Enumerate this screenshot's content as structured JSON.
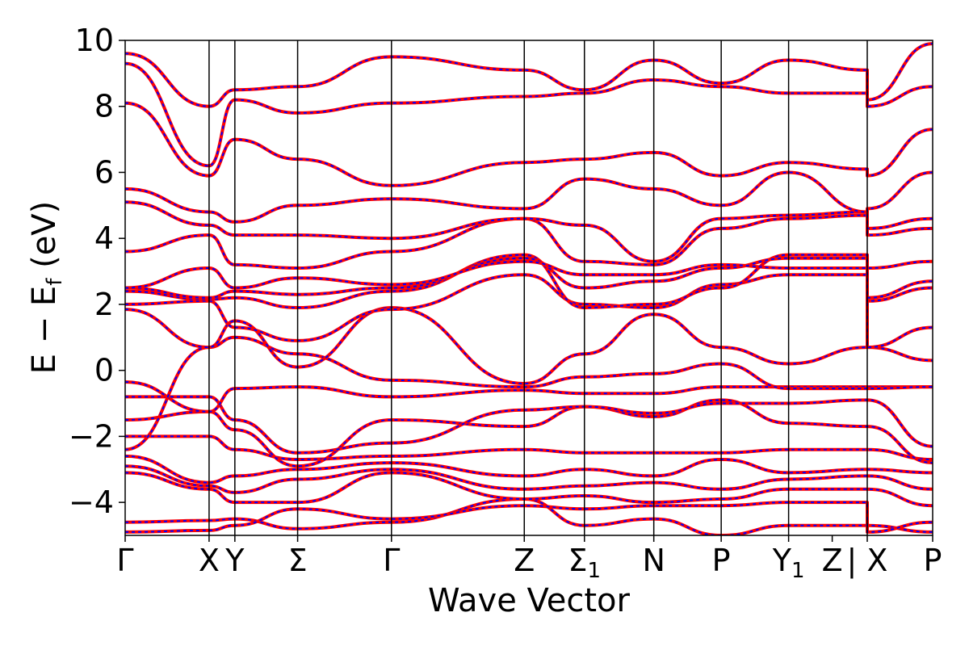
{
  "chart_data": {
    "type": "line",
    "title": "",
    "xlabel": "Wave Vector",
    "ylabel": "E − E",
    "ylabel_sub": "f",
    "ylabel_unit": " (eV)",
    "ylim": [
      -5,
      10
    ],
    "yticks": [
      10,
      8,
      6,
      4,
      2,
      0,
      -2,
      -4
    ],
    "ytick_labels": [
      "10",
      "8",
      "6",
      "4",
      "2",
      "0",
      "−2",
      "−4"
    ],
    "xlim": [
      0,
      12.22
    ],
    "path_ticks": [
      {
        "x": 0.0,
        "label": "Γ",
        "sub": ""
      },
      {
        "x": 1.27,
        "label": "X",
        "sub": ""
      },
      {
        "x": 1.66,
        "label": "Y",
        "sub": ""
      },
      {
        "x": 2.61,
        "label": "Σ",
        "sub": ""
      },
      {
        "x": 4.03,
        "label": "Γ",
        "sub": ""
      },
      {
        "x": 6.04,
        "label": "Z",
        "sub": ""
      },
      {
        "x": 6.95,
        "label": "Σ",
        "sub": "1"
      },
      {
        "x": 8.0,
        "label": "N",
        "sub": ""
      },
      {
        "x": 9.02,
        "label": "P",
        "sub": ""
      },
      {
        "x": 10.04,
        "label": "Y",
        "sub": "1"
      },
      {
        "x": 10.7,
        "label": "Z",
        "sub": ""
      },
      {
        "x": 11.23,
        "label": "| X",
        "sub": ""
      },
      {
        "x": 12.22,
        "label": "P",
        "sub": ""
      }
    ],
    "vlines": [
      1.27,
      1.66,
      2.61,
      4.03,
      6.04,
      6.95,
      8.0,
      9.02,
      10.04,
      11.23
    ],
    "series_colors": {
      "solid": "#ff0000",
      "dashed": "#0000ff"
    },
    "series": [
      {
        "x": [
          0,
          1.27,
          1.66,
          2.61,
          4.03,
          6.04,
          6.95,
          8.0,
          9.02,
          10.04,
          11.23,
          11.23,
          12.22
        ],
        "y": [
          -4.6,
          -4.55,
          -4.5,
          -4.8,
          -4.6,
          -3.9,
          -4.7,
          -4.5,
          -5.0,
          -4.7,
          -4.7,
          -4.7,
          -4.9
        ]
      },
      {
        "x": [
          0,
          1.27,
          1.66,
          2.61,
          4.03,
          6.04,
          6.95,
          8.0,
          9.02,
          10.04,
          11.23,
          11.23,
          12.22
        ],
        "y": [
          -4.9,
          -4.85,
          -4.7,
          -4.2,
          -4.5,
          -4.1,
          -4.2,
          -4.1,
          -4.1,
          -4.0,
          -4.0,
          -4.9,
          -4.6
        ]
      },
      {
        "x": [
          0,
          1.27,
          1.66,
          2.61,
          4.03,
          6.04,
          6.95,
          8.0,
          9.02,
          10.04,
          11.23,
          11.23,
          12.22
        ],
        "y": [
          -3.1,
          -3.6,
          -4.0,
          -4.0,
          -3.1,
          -3.9,
          -3.8,
          -4.0,
          -3.9,
          -3.6,
          -3.6,
          -3.6,
          -4.1
        ]
      },
      {
        "x": [
          0,
          1.27,
          1.66,
          2.61,
          4.03,
          6.04,
          6.95,
          8.0,
          9.02,
          10.04,
          11.23,
          11.23,
          12.22
        ],
        "y": [
          -2.9,
          -3.5,
          -3.7,
          -3.3,
          -3.0,
          -3.6,
          -3.5,
          -3.4,
          -3.6,
          -3.3,
          -3.2,
          -3.2,
          -3.6
        ]
      },
      {
        "x": [
          0,
          1.27,
          1.66,
          2.61,
          4.03,
          6.04,
          6.95,
          8.0,
          9.02,
          10.04,
          11.23,
          11.23,
          12.22
        ],
        "y": [
          -2.6,
          -3.4,
          -3.2,
          -3.0,
          -2.8,
          -3.2,
          -3.0,
          -3.2,
          -2.7,
          -3.1,
          -3.0,
          -3.0,
          -3.1
        ]
      },
      {
        "x": [
          0,
          1.27,
          1.66,
          2.61,
          4.03,
          6.04,
          6.95,
          8.0,
          9.02,
          10.04,
          11.23,
          11.23,
          12.22
        ],
        "y": [
          -2.0,
          -2.0,
          -2.4,
          -2.7,
          -2.6,
          -2.4,
          -2.5,
          -2.5,
          -2.5,
          -2.4,
          -2.4,
          -2.4,
          -2.7
        ]
      },
      {
        "x": [
          0,
          1.27,
          1.66,
          2.61,
          4.03,
          6.04,
          6.95,
          8.0,
          9.02,
          10.04,
          11.23,
          11.23,
          12.22
        ],
        "y": [
          -1.5,
          -1.25,
          -1.8,
          -2.9,
          -1.5,
          -1.7,
          -1.1,
          -1.4,
          -0.9,
          -1.6,
          -1.7,
          -1.7,
          -2.8
        ]
      },
      {
        "x": [
          0,
          1.27,
          1.66,
          2.61,
          4.03,
          6.04,
          6.95,
          8.0,
          9.02,
          10.04,
          11.23,
          11.23,
          12.22
        ],
        "y": [
          -0.8,
          -0.8,
          -1.5,
          -2.5,
          -2.2,
          -1.2,
          -1.1,
          -1.3,
          -1.0,
          -1.0,
          -0.9,
          -0.9,
          -2.3
        ]
      },
      {
        "x": [
          0,
          1.27,
          1.66,
          2.61,
          4.03,
          6.04,
          6.95,
          8.0,
          9.02,
          10.04,
          11.23,
          11.23,
          12.22
        ],
        "y": [
          -0.35,
          -1.25,
          -0.55,
          -0.5,
          -0.8,
          -0.6,
          -0.7,
          -0.7,
          -0.5,
          -0.5,
          -0.5,
          -0.5,
          -0.5
        ]
      },
      {
        "x": [
          0,
          1.27,
          1.66,
          2.61,
          4.03,
          6.04,
          6.95,
          8.0,
          9.02,
          10.04,
          11.23,
          11.23,
          12.22
        ],
        "y": [
          -2.4,
          0.7,
          1.0,
          0.5,
          -0.3,
          -0.5,
          -0.2,
          -0.1,
          0.2,
          -0.55,
          -0.55,
          -0.55,
          -0.5
        ]
      },
      {
        "x": [
          0,
          1.27,
          1.66,
          2.61,
          4.03,
          6.04,
          6.95,
          8.0,
          9.02,
          10.04,
          11.23,
          11.23,
          12.22
        ],
        "y": [
          1.85,
          0.7,
          1.5,
          0.1,
          1.9,
          -0.4,
          0.5,
          1.7,
          0.7,
          0.2,
          0.7,
          0.7,
          0.3
        ]
      },
      {
        "x": [
          0,
          1.27,
          1.66,
          2.61,
          4.03,
          6.04,
          6.95,
          8.0,
          9.02,
          10.04,
          11.23,
          11.23,
          12.22
        ],
        "y": [
          2.0,
          2.1,
          1.3,
          0.9,
          1.85,
          2.9,
          2.0,
          1.9,
          2.6,
          2.9,
          2.9,
          0.7,
          1.3
        ]
      },
      {
        "x": [
          0,
          1.27,
          1.66,
          2.61,
          4.03,
          6.04,
          6.95,
          8.0,
          9.02,
          10.04,
          11.23,
          11.23,
          12.22
        ],
        "y": [
          2.4,
          2.15,
          2.2,
          1.9,
          2.4,
          3.5,
          1.9,
          2.0,
          2.5,
          3.5,
          3.5,
          2.1,
          2.5
        ]
      },
      {
        "x": [
          0,
          1.27,
          1.66,
          2.61,
          4.03,
          6.04,
          6.95,
          8.0,
          9.02,
          10.04,
          11.23,
          11.23,
          12.22
        ],
        "y": [
          2.5,
          2.2,
          2.4,
          2.3,
          2.5,
          3.4,
          2.5,
          2.7,
          3.1,
          3.4,
          3.4,
          2.2,
          2.7
        ]
      },
      {
        "x": [
          0,
          1.27,
          1.66,
          2.61,
          4.03,
          6.04,
          6.95,
          8.0,
          9.02,
          10.04,
          11.23,
          11.23,
          12.22
        ],
        "y": [
          2.5,
          3.1,
          2.5,
          2.8,
          2.6,
          3.3,
          2.9,
          2.9,
          3.2,
          3.1,
          3.1,
          3.1,
          3.3
        ]
      },
      {
        "x": [
          0,
          1.27,
          1.66,
          2.61,
          4.03,
          6.04,
          6.95,
          8.0,
          9.02,
          10.04,
          11.23,
          11.23,
          12.22
        ],
        "y": [
          3.6,
          4.1,
          3.2,
          3.1,
          3.6,
          4.6,
          3.3,
          3.2,
          4.3,
          4.6,
          4.7,
          4.1,
          4.3
        ]
      },
      {
        "x": [
          0,
          1.27,
          1.66,
          2.61,
          4.03,
          6.04,
          6.95,
          8.0,
          9.02,
          10.04,
          11.23,
          11.23,
          12.22
        ],
        "y": [
          5.1,
          4.4,
          4.1,
          4.1,
          4.0,
          4.6,
          4.4,
          3.3,
          4.6,
          4.7,
          4.8,
          4.3,
          4.6
        ]
      },
      {
        "x": [
          0,
          1.27,
          1.66,
          2.61,
          4.03,
          6.04,
          6.95,
          8.0,
          9.02,
          10.04,
          11.23,
          11.23,
          12.22
        ],
        "y": [
          5.5,
          4.8,
          4.5,
          5.0,
          5.2,
          4.9,
          5.8,
          5.5,
          5.0,
          6.0,
          4.8,
          4.9,
          6.0
        ]
      },
      {
        "x": [
          0,
          1.27,
          1.66,
          2.61,
          4.03,
          6.04,
          6.95,
          8.0,
          9.02,
          10.04,
          11.23,
          11.23,
          12.22
        ],
        "y": [
          8.1,
          5.9,
          7.0,
          6.4,
          5.6,
          6.3,
          6.4,
          6.6,
          5.9,
          6.3,
          6.1,
          5.9,
          7.3
        ]
      },
      {
        "x": [
          0,
          1.27,
          1.66,
          2.61,
          4.03,
          6.04,
          6.95,
          8.0,
          9.02,
          10.04,
          11.23,
          11.23,
          12.22
        ],
        "y": [
          9.3,
          6.2,
          8.2,
          7.8,
          8.1,
          8.3,
          8.4,
          8.8,
          8.6,
          8.4,
          8.4,
          8.0,
          8.6
        ]
      },
      {
        "x": [
          0,
          1.27,
          1.66,
          2.61,
          4.03,
          6.04,
          6.95,
          8.0,
          9.02,
          10.04,
          11.23,
          11.23,
          12.22
        ],
        "y": [
          9.6,
          8.0,
          8.5,
          8.6,
          9.5,
          9.1,
          8.5,
          9.4,
          8.7,
          9.4,
          9.1,
          8.2,
          9.9
        ]
      }
    ]
  }
}
